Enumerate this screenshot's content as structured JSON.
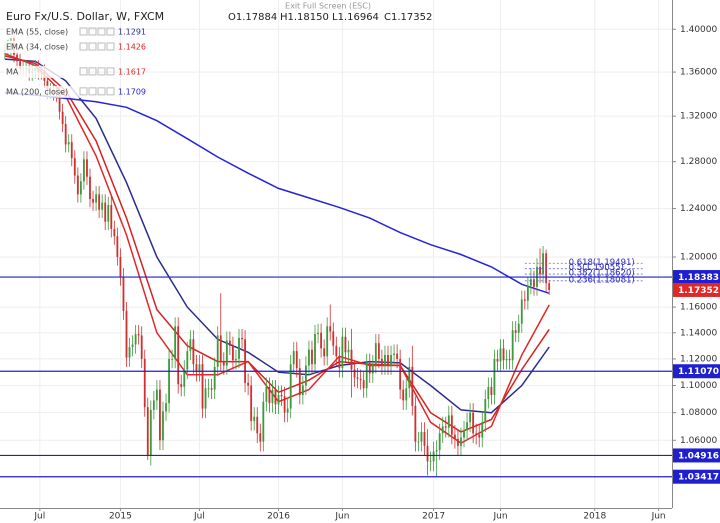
{
  "chart_data": {
    "type": "candlestick",
    "title": "Euro Fx/U.S. Dollar, W, FXCM",
    "ohlc_labels": [
      "O1.17884",
      "H1.18150",
      "L1.16964",
      "C1.17352"
    ],
    "toolbar_text": "Exit Full Screen (ESC)",
    "log_scale": true,
    "grid": true,
    "up_color": "#3c9a3c",
    "down_color": "#d03030",
    "xlim": [
      -1.6,
      219.4
    ],
    "xticks": [
      {
        "value": 11.5,
        "label": "Jul"
      },
      {
        "value": 38,
        "label": "2015"
      },
      {
        "value": 64,
        "label": "Jul"
      },
      {
        "value": 90,
        "label": "2016"
      },
      {
        "value": 111,
        "label": "Jun"
      },
      {
        "value": 141,
        "label": "2017"
      },
      {
        "value": 163,
        "label": "Jun"
      },
      {
        "value": 194,
        "label": "2018"
      },
      {
        "value": 215,
        "label": "Jun"
      }
    ],
    "ylim": [
      1.0125,
      1.428
    ],
    "yticks": [
      {
        "value": 1.4,
        "label": "1.40000"
      },
      {
        "value": 1.36,
        "label": "1.36000"
      },
      {
        "value": 1.32,
        "label": "1.32000"
      },
      {
        "value": 1.28,
        "label": "1.28000"
      },
      {
        "value": 1.24,
        "label": "1.24000"
      },
      {
        "value": 1.2,
        "label": "1.20000"
      },
      {
        "value": 1.16,
        "label": "1.16000"
      },
      {
        "value": 1.14,
        "label": "1.14000"
      },
      {
        "value": 1.12,
        "label": "1.12000"
      },
      {
        "value": 1.1,
        "label": "1.10000"
      },
      {
        "value": 1.08,
        "label": "1.08000"
      },
      {
        "value": 1.06,
        "label": "1.06000"
      }
    ],
    "candles": [
      [
        1.379,
        1.388,
        1.372,
        1.381
      ],
      [
        1.381,
        1.39,
        1.374,
        1.383
      ],
      [
        1.383,
        1.394,
        1.376,
        1.387
      ],
      [
        1.387,
        1.399,
        1.369,
        1.376
      ],
      [
        1.376,
        1.383,
        1.363,
        1.37
      ],
      [
        1.37,
        1.377,
        1.356,
        1.363
      ],
      [
        1.363,
        1.37,
        1.356,
        1.363
      ],
      [
        1.363,
        1.371,
        1.356,
        1.364
      ],
      [
        1.364,
        1.371,
        1.352,
        1.359
      ],
      [
        1.359,
        1.368,
        1.352,
        1.361
      ],
      [
        1.361,
        1.371,
        1.354,
        1.364
      ],
      [
        1.364,
        1.371,
        1.353,
        1.36
      ],
      [
        1.36,
        1.367,
        1.353,
        1.36
      ],
      [
        1.36,
        1.367,
        1.345,
        1.352
      ],
      [
        1.352,
        1.359,
        1.336,
        1.343
      ],
      [
        1.343,
        1.35,
        1.336,
        1.343
      ],
      [
        1.343,
        1.35,
        1.334,
        1.341
      ],
      [
        1.341,
        1.348,
        1.333,
        1.34
      ],
      [
        1.34,
        1.347,
        1.317,
        1.324
      ],
      [
        1.324,
        1.331,
        1.306,
        1.313
      ],
      [
        1.313,
        1.32,
        1.288,
        1.295
      ],
      [
        1.295,
        1.304,
        1.288,
        1.297
      ],
      [
        1.297,
        1.304,
        1.276,
        1.283
      ],
      [
        1.283,
        1.29,
        1.261,
        1.268
      ],
      [
        1.268,
        1.275,
        1.245,
        1.252
      ],
      [
        1.252,
        1.27,
        1.245,
        1.263
      ],
      [
        1.263,
        1.289,
        1.256,
        1.282
      ],
      [
        1.282,
        1.289,
        1.26,
        1.267
      ],
      [
        1.267,
        1.274,
        1.241,
        1.248
      ],
      [
        1.248,
        1.255,
        1.238,
        1.245
      ],
      [
        1.245,
        1.259,
        1.238,
        1.252
      ],
      [
        1.252,
        1.259,
        1.232,
        1.239
      ],
      [
        1.239,
        1.252,
        1.232,
        1.245
      ],
      [
        1.245,
        1.252,
        1.222,
        1.229
      ],
      [
        1.229,
        1.25,
        1.222,
        1.243
      ],
      [
        1.243,
        1.25,
        1.216,
        1.223
      ],
      [
        1.223,
        1.23,
        1.21,
        1.217
      ],
      [
        1.217,
        1.224,
        1.193,
        1.2
      ],
      [
        1.2,
        1.207,
        1.177,
        1.184
      ],
      [
        1.184,
        1.191,
        1.15,
        1.157
      ],
      [
        1.157,
        1.164,
        1.114,
        1.121
      ],
      [
        1.121,
        1.136,
        1.114,
        1.129
      ],
      [
        1.129,
        1.138,
        1.122,
        1.131
      ],
      [
        1.131,
        1.146,
        1.124,
        1.139
      ],
      [
        1.139,
        1.146,
        1.131,
        1.138
      ],
      [
        1.138,
        1.145,
        1.113,
        1.12
      ],
      [
        1.12,
        1.127,
        1.077,
        1.084
      ],
      [
        1.084,
        1.091,
        1.046,
        1.049
      ],
      [
        1.049,
        1.089,
        1.042,
        1.082
      ],
      [
        1.082,
        1.096,
        1.075,
        1.089
      ],
      [
        1.089,
        1.104,
        1.082,
        1.097
      ],
      [
        1.097,
        1.104,
        1.053,
        1.06
      ],
      [
        1.06,
        1.088,
        1.053,
        1.081
      ],
      [
        1.081,
        1.094,
        1.074,
        1.087
      ],
      [
        1.087,
        1.127,
        1.08,
        1.12
      ],
      [
        1.12,
        1.127,
        1.113,
        1.12
      ],
      [
        1.12,
        1.152,
        1.113,
        1.145
      ],
      [
        1.145,
        1.152,
        1.094,
        1.101
      ],
      [
        1.101,
        1.108,
        1.092,
        1.099
      ],
      [
        1.099,
        1.119,
        1.092,
        1.112
      ],
      [
        1.112,
        1.133,
        1.105,
        1.126
      ],
      [
        1.126,
        1.142,
        1.119,
        1.135
      ],
      [
        1.135,
        1.142,
        1.109,
        1.116
      ],
      [
        1.116,
        1.123,
        1.103,
        1.11
      ],
      [
        1.11,
        1.123,
        1.103,
        1.116
      ],
      [
        1.116,
        1.123,
        1.076,
        1.083
      ],
      [
        1.083,
        1.105,
        1.076,
        1.098
      ],
      [
        1.098,
        1.105,
        1.091,
        1.098
      ],
      [
        1.098,
        1.105,
        1.09,
        1.097
      ],
      [
        1.097,
        1.121,
        1.09,
        1.114
      ],
      [
        1.114,
        1.145,
        1.107,
        1.138
      ],
      [
        1.138,
        1.171,
        1.111,
        1.118
      ],
      [
        1.118,
        1.125,
        1.108,
        1.115
      ],
      [
        1.115,
        1.141,
        1.108,
        1.134
      ],
      [
        1.134,
        1.141,
        1.123,
        1.13
      ],
      [
        1.13,
        1.137,
        1.112,
        1.119
      ],
      [
        1.119,
        1.127,
        1.112,
        1.12
      ],
      [
        1.12,
        1.143,
        1.113,
        1.136
      ],
      [
        1.136,
        1.143,
        1.128,
        1.135
      ],
      [
        1.135,
        1.142,
        1.095,
        1.102
      ],
      [
        1.102,
        1.109,
        1.093,
        1.1
      ],
      [
        1.1,
        1.107,
        1.067,
        1.074
      ],
      [
        1.074,
        1.084,
        1.067,
        1.077
      ],
      [
        1.077,
        1.084,
        1.058,
        1.065
      ],
      [
        1.065,
        1.072,
        1.052,
        1.059
      ],
      [
        1.059,
        1.095,
        1.052,
        1.088
      ],
      [
        1.088,
        1.106,
        1.081,
        1.099
      ],
      [
        1.099,
        1.106,
        1.08,
        1.087
      ],
      [
        1.087,
        1.104,
        1.08,
        1.097
      ],
      [
        1.097,
        1.104,
        1.079,
        1.086
      ],
      [
        1.086,
        1.1,
        1.079,
        1.093
      ],
      [
        1.093,
        1.1,
        1.085,
        1.092
      ],
      [
        1.092,
        1.099,
        1.073,
        1.08
      ],
      [
        1.08,
        1.09,
        1.073,
        1.083
      ],
      [
        1.083,
        1.123,
        1.076,
        1.116
      ],
      [
        1.116,
        1.133,
        1.109,
        1.126
      ],
      [
        1.126,
        1.133,
        1.106,
        1.113
      ],
      [
        1.113,
        1.12,
        1.086,
        1.093
      ],
      [
        1.093,
        1.107,
        1.086,
        1.1
      ],
      [
        1.1,
        1.122,
        1.093,
        1.115
      ],
      [
        1.115,
        1.134,
        1.108,
        1.127
      ],
      [
        1.127,
        1.134,
        1.109,
        1.116
      ],
      [
        1.116,
        1.146,
        1.109,
        1.139
      ],
      [
        1.139,
        1.147,
        1.132,
        1.14
      ],
      [
        1.14,
        1.147,
        1.121,
        1.128
      ],
      [
        1.128,
        1.135,
        1.115,
        1.122
      ],
      [
        1.122,
        1.152,
        1.115,
        1.145
      ],
      [
        1.145,
        1.162,
        1.134,
        1.141
      ],
      [
        1.141,
        1.148,
        1.123,
        1.13
      ],
      [
        1.13,
        1.137,
        1.115,
        1.122
      ],
      [
        1.122,
        1.129,
        1.106,
        1.113
      ],
      [
        1.113,
        1.144,
        1.106,
        1.137
      ],
      [
        1.137,
        1.144,
        1.118,
        1.125
      ],
      [
        1.125,
        1.134,
        1.118,
        1.127
      ],
      [
        1.127,
        1.143,
        1.091,
        1.112
      ],
      [
        1.112,
        1.119,
        1.099,
        1.106
      ],
      [
        1.106,
        1.113,
        1.098,
        1.105
      ],
      [
        1.105,
        1.112,
        1.097,
        1.104
      ],
      [
        1.104,
        1.111,
        1.091,
        1.098
      ],
      [
        1.098,
        1.124,
        1.091,
        1.117
      ],
      [
        1.117,
        1.124,
        1.102,
        1.109
      ],
      [
        1.109,
        1.123,
        1.102,
        1.116
      ],
      [
        1.116,
        1.139,
        1.109,
        1.132
      ],
      [
        1.132,
        1.139,
        1.113,
        1.12
      ],
      [
        1.12,
        1.127,
        1.108,
        1.115
      ],
      [
        1.115,
        1.13,
        1.108,
        1.123
      ],
      [
        1.123,
        1.13,
        1.108,
        1.115
      ],
      [
        1.115,
        1.13,
        1.108,
        1.123
      ],
      [
        1.123,
        1.131,
        1.116,
        1.124
      ],
      [
        1.124,
        1.131,
        1.113,
        1.12
      ],
      [
        1.12,
        1.127,
        1.09,
        1.097
      ],
      [
        1.097,
        1.104,
        1.082,
        1.089
      ],
      [
        1.089,
        1.105,
        1.082,
        1.098
      ],
      [
        1.098,
        1.121,
        1.091,
        1.114
      ],
      [
        1.114,
        1.13,
        1.078,
        1.085
      ],
      [
        1.085,
        1.092,
        1.052,
        1.059
      ],
      [
        1.059,
        1.066,
        1.052,
        1.059
      ],
      [
        1.059,
        1.073,
        1.052,
        1.066
      ],
      [
        1.066,
        1.073,
        1.049,
        1.056
      ],
      [
        1.056,
        1.068,
        1.035,
        1.045
      ],
      [
        1.045,
        1.052,
        1.038,
        1.045
      ],
      [
        1.045,
        1.059,
        1.038,
        1.052
      ],
      [
        1.052,
        1.06,
        1.034,
        1.053
      ],
      [
        1.053,
        1.072,
        1.046,
        1.065
      ],
      [
        1.065,
        1.077,
        1.058,
        1.07
      ],
      [
        1.07,
        1.077,
        1.062,
        1.069
      ],
      [
        1.069,
        1.085,
        1.062,
        1.078
      ],
      [
        1.078,
        1.085,
        1.057,
        1.064
      ],
      [
        1.064,
        1.071,
        1.054,
        1.061
      ],
      [
        1.061,
        1.068,
        1.049,
        1.056
      ],
      [
        1.056,
        1.069,
        1.049,
        1.062
      ],
      [
        1.062,
        1.074,
        1.055,
        1.067
      ],
      [
        1.067,
        1.08,
        1.06,
        1.073
      ],
      [
        1.073,
        1.087,
        1.066,
        1.08
      ],
      [
        1.08,
        1.087,
        1.058,
        1.065
      ],
      [
        1.065,
        1.072,
        1.057,
        1.064
      ],
      [
        1.064,
        1.071,
        1.055,
        1.062
      ],
      [
        1.062,
        1.08,
        1.055,
        1.073
      ],
      [
        1.073,
        1.097,
        1.066,
        1.09
      ],
      [
        1.09,
        1.106,
        1.083,
        1.099
      ],
      [
        1.099,
        1.106,
        1.086,
        1.093
      ],
      [
        1.093,
        1.127,
        1.086,
        1.12
      ],
      [
        1.12,
        1.127,
        1.111,
        1.118
      ],
      [
        1.118,
        1.135,
        1.111,
        1.128
      ],
      [
        1.128,
        1.135,
        1.112,
        1.119
      ],
      [
        1.119,
        1.127,
        1.112,
        1.12
      ],
      [
        1.12,
        1.127,
        1.112,
        1.119
      ],
      [
        1.119,
        1.149,
        1.112,
        1.142
      ],
      [
        1.142,
        1.149,
        1.133,
        1.14
      ],
      [
        1.14,
        1.154,
        1.133,
        1.147
      ],
      [
        1.147,
        1.173,
        1.14,
        1.166
      ],
      [
        1.166,
        1.173,
        1.158,
        1.165
      ],
      [
        1.165,
        1.184,
        1.158,
        1.177
      ],
      [
        1.177,
        1.191,
        1.17,
        1.182
      ],
      [
        1.182,
        1.189,
        1.169,
        1.176
      ],
      [
        1.176,
        1.199,
        1.169,
        1.192
      ],
      [
        1.192,
        1.207,
        1.179,
        1.186
      ],
      [
        1.186,
        1.209,
        1.179,
        1.203
      ],
      [
        1.203,
        1.206,
        1.172,
        1.179
      ],
      [
        1.17884,
        1.1815,
        1.16964,
        1.17352
      ]
    ],
    "series": [
      {
        "name": "EMA (55, close)",
        "color": "#2b2b8c",
        "x": [
          0,
          10,
          20,
          30,
          40,
          50,
          60,
          70,
          80,
          90,
          100,
          110,
          120,
          130,
          140,
          150,
          160,
          170,
          179
        ],
        "values": [
          1.372,
          1.37,
          1.352,
          1.318,
          1.262,
          1.2,
          1.16,
          1.135,
          1.125,
          1.11,
          1.108,
          1.115,
          1.118,
          1.117,
          1.1,
          1.082,
          1.08,
          1.1,
          1.1291
        ]
      },
      {
        "name": "EMA (34, close)",
        "color": "#d82020",
        "x": [
          0,
          10,
          20,
          30,
          40,
          50,
          60,
          70,
          80,
          90,
          100,
          110,
          120,
          130,
          140,
          150,
          160,
          170,
          179
        ],
        "values": [
          1.375,
          1.368,
          1.343,
          1.298,
          1.232,
          1.158,
          1.13,
          1.118,
          1.118,
          1.095,
          1.104,
          1.118,
          1.116,
          1.115,
          1.08,
          1.066,
          1.075,
          1.112,
          1.1426
        ]
      },
      {
        "name": "MA",
        "color": "#e02828",
        "x": [
          0,
          10,
          20,
          30,
          40,
          50,
          60,
          70,
          80,
          90,
          100,
          110,
          120,
          130,
          140,
          150,
          160,
          170,
          179
        ],
        "values": [
          1.377,
          1.366,
          1.338,
          1.285,
          1.218,
          1.14,
          1.108,
          1.108,
          1.118,
          1.088,
          1.097,
          1.122,
          1.115,
          1.115,
          1.073,
          1.058,
          1.07,
          1.123,
          1.1617
        ]
      },
      {
        "name": "MA (200, close)",
        "color": "#2424d8",
        "x": [
          0,
          10,
          20,
          30,
          40,
          50,
          60,
          70,
          80,
          90,
          100,
          110,
          120,
          130,
          140,
          150,
          160,
          170,
          179
        ],
        "values": [
          1.341,
          1.339,
          1.336,
          1.333,
          1.328,
          1.316,
          1.3,
          1.284,
          1.27,
          1.257,
          1.249,
          1.241,
          1.232,
          1.22,
          1.21,
          1.202,
          1.192,
          1.178,
          1.1709
        ]
      }
    ],
    "hlines": [
      {
        "value": 1.18383,
        "label": "1.18383"
      },
      {
        "value": 1.1107,
        "label": "1.11070"
      },
      {
        "value": 1.04916,
        "label": "1.04916"
      },
      {
        "value": 1.03417,
        "label": "1.03417"
      }
    ],
    "hline_color": "#1f1fd0",
    "last_price_color": "#e02828",
    "fib_levels": [
      {
        "value": 1.19491,
        "label": "0.618(1.19491)"
      },
      {
        "value": 1.19055,
        "label": "0.5(1.19055)"
      },
      {
        "value": 1.1862,
        "label": "0.382(1.18620)"
      },
      {
        "value": 1.18081,
        "label": "0.236(1.18081)"
      }
    ],
    "fib_range": [
      171,
      190
    ]
  }
}
